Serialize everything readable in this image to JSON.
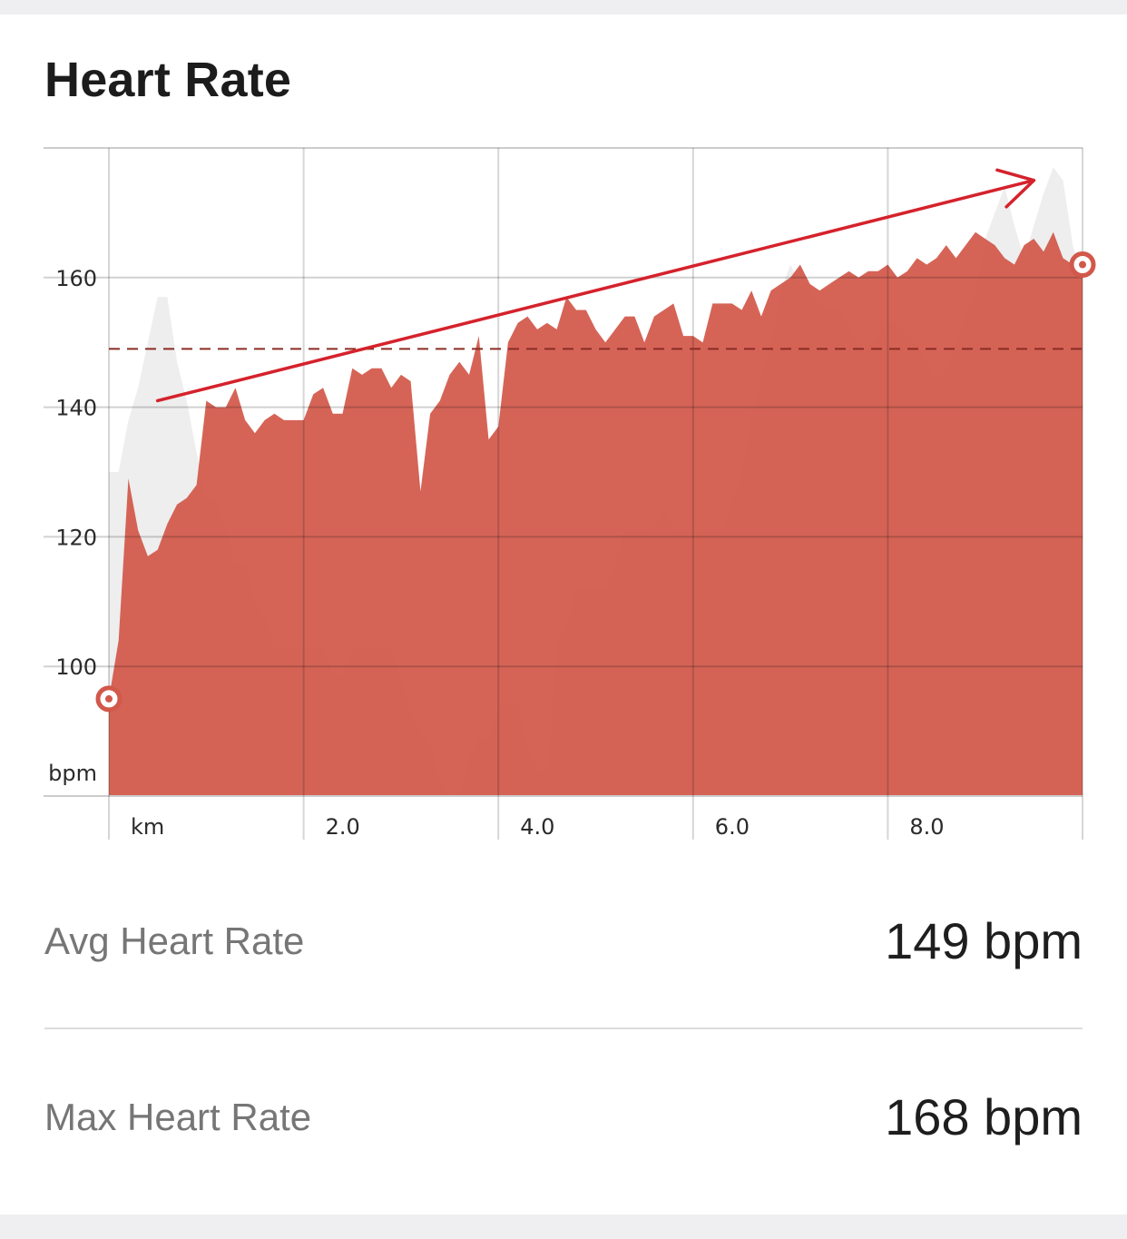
{
  "card": {
    "title": "Heart Rate"
  },
  "chart_data": {
    "type": "area",
    "xlabel": "km",
    "ylabel": "bpm",
    "xlim": [
      0,
      10
    ],
    "ylim": [
      80,
      180
    ],
    "x_ticks": [
      {
        "value": 0,
        "label": "km"
      },
      {
        "value": 2,
        "label": "2.0"
      },
      {
        "value": 4,
        "label": "4.0"
      },
      {
        "value": 6,
        "label": "6.0"
      },
      {
        "value": 8,
        "label": "8.0"
      }
    ],
    "y_ticks": [
      {
        "value": 100,
        "label": "100"
      },
      {
        "value": 120,
        "label": "120"
      },
      {
        "value": 140,
        "label": "140"
      },
      {
        "value": 160,
        "label": "160"
      }
    ],
    "average_line": 149,
    "heart_rate": {
      "x": [
        0,
        0.1,
        0.2,
        0.3,
        0.4,
        0.5,
        0.6,
        0.7,
        0.8,
        0.9,
        1.0,
        1.1,
        1.2,
        1.3,
        1.4,
        1.5,
        1.6,
        1.7,
        1.8,
        1.9,
        2.0,
        2.1,
        2.2,
        2.3,
        2.4,
        2.5,
        2.6,
        2.7,
        2.8,
        2.9,
        3.0,
        3.1,
        3.2,
        3.3,
        3.4,
        3.5,
        3.6,
        3.7,
        3.8,
        3.9,
        4.0,
        4.1,
        4.2,
        4.3,
        4.4,
        4.5,
        4.6,
        4.7,
        4.8,
        4.9,
        5.0,
        5.1,
        5.2,
        5.3,
        5.4,
        5.5,
        5.6,
        5.7,
        5.8,
        5.9,
        6.0,
        6.1,
        6.2,
        6.3,
        6.4,
        6.5,
        6.6,
        6.7,
        6.8,
        6.9,
        7.0,
        7.1,
        7.2,
        7.3,
        7.4,
        7.5,
        7.6,
        7.7,
        7.8,
        7.9,
        8.0,
        8.1,
        8.2,
        8.3,
        8.4,
        8.5,
        8.6,
        8.7,
        8.8,
        8.9,
        9.0,
        9.1,
        9.2,
        9.3,
        9.4,
        9.5,
        9.6,
        9.7,
        9.8,
        9.9,
        10.0
      ],
      "y": [
        95,
        104,
        129,
        121,
        117,
        118,
        122,
        125,
        126,
        128,
        141,
        140,
        140,
        143,
        138,
        136,
        138,
        139,
        138,
        138,
        138,
        142,
        143,
        139,
        139,
        146,
        145,
        146,
        146,
        143,
        145,
        144,
        127,
        139,
        141,
        145,
        147,
        145,
        151,
        135,
        137,
        150,
        153,
        154,
        152,
        153,
        152,
        157,
        155,
        155,
        152,
        150,
        152,
        154,
        154,
        150,
        154,
        155,
        156,
        151,
        151,
        150,
        156,
        156,
        156,
        155,
        158,
        154,
        158,
        159,
        160,
        162,
        159,
        158,
        159,
        160,
        161,
        160,
        161,
        161,
        162,
        160,
        161,
        163,
        162,
        163,
        165,
        163,
        165,
        167,
        166,
        165,
        163,
        162,
        165,
        166,
        164,
        167,
        163,
        162,
        162
      ]
    },
    "elevation": {
      "x": [
        0,
        0.1,
        0.2,
        0.3,
        0.4,
        0.5,
        0.6,
        0.7,
        0.8,
        0.9,
        1.0,
        1.1,
        1.2,
        1.3,
        1.4,
        1.5,
        1.6,
        1.7,
        1.8,
        1.9,
        2.0,
        2.1,
        2.2,
        2.3,
        2.4,
        2.5,
        2.6,
        2.7,
        2.8,
        2.9,
        3.0,
        3.1,
        3.2,
        3.3,
        3.4,
        3.5,
        3.6,
        3.7,
        3.8,
        3.9,
        4.0,
        4.1,
        4.2,
        4.3,
        4.4,
        4.5,
        4.6,
        4.7,
        4.8,
        4.9,
        5.0,
        5.1,
        5.2,
        5.3,
        5.4,
        5.5,
        5.6,
        5.7,
        5.8,
        5.9,
        6.0,
        6.1,
        6.2,
        6.3,
        6.4,
        6.5,
        6.6,
        6.7,
        6.8,
        6.9,
        7.0,
        7.1,
        7.2,
        7.3,
        7.4,
        7.5,
        7.6,
        7.7,
        7.8,
        7.9,
        8.0,
        8.1,
        8.2,
        8.3,
        8.4,
        8.5,
        8.6,
        8.7,
        8.8,
        8.9,
        9.0,
        9.1,
        9.2,
        9.3,
        9.4,
        9.5,
        9.6,
        9.7,
        9.8,
        9.9,
        10.0
      ],
      "y": [
        130,
        130,
        138,
        143,
        150,
        157,
        157,
        147,
        141,
        133,
        126,
        126,
        122,
        116,
        116,
        110,
        108,
        103,
        103,
        103,
        103,
        103,
        103,
        99,
        99,
        103,
        103,
        103,
        103,
        103,
        98,
        93,
        90,
        88,
        83,
        80,
        80,
        86,
        89,
        89,
        94,
        94,
        94,
        88,
        84,
        84,
        103,
        107,
        112,
        112,
        112,
        112,
        116,
        121,
        121,
        121,
        121,
        125,
        121,
        121,
        121,
        121,
        121,
        121,
        126,
        130,
        139,
        145,
        150,
        158,
        162,
        159,
        158,
        156,
        155,
        155,
        153,
        149,
        149,
        151,
        153,
        153,
        151,
        150,
        147,
        144,
        146,
        150,
        154,
        158,
        166,
        170,
        174,
        168,
        163,
        168,
        173,
        177,
        175,
        165,
        160
      ]
    },
    "markers": [
      {
        "name": "start",
        "x": 0,
        "y": 95
      },
      {
        "name": "end",
        "x": 10,
        "y": 162
      }
    ],
    "trend_arrow": {
      "from": [
        0.5,
        141
      ],
      "to": [
        9.5,
        175
      ]
    },
    "colors": {
      "heart_rate_fill": "#d2584a",
      "elevation_fill": "#eeeeee",
      "average_line": "#8b2c24",
      "trend_arrow": "#d5222c",
      "grid": "#cccccc"
    }
  },
  "stats": {
    "avg": {
      "label": "Avg Heart Rate",
      "value": "149 bpm"
    },
    "max": {
      "label": "Max Heart Rate",
      "value": "168 bpm"
    }
  }
}
